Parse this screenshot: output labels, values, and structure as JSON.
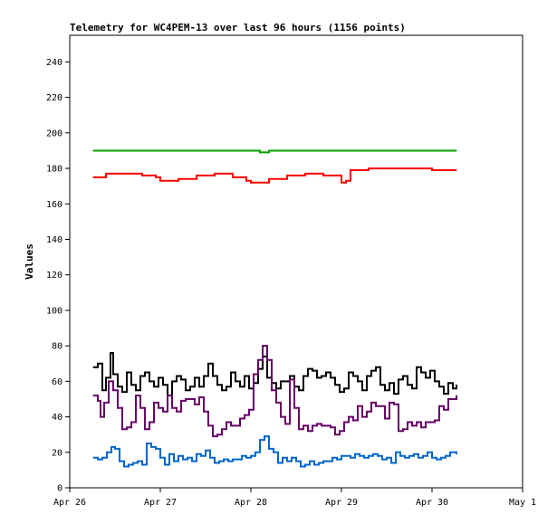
{
  "chart_data": {
    "type": "line",
    "title": "Telemetry for WC4PEM-13 over last 96 hours (1156 points)",
    "ylabel": "Values",
    "xlabel": "",
    "ylim": [
      0,
      255
    ],
    "yticks": [
      0,
      20,
      40,
      60,
      80,
      100,
      120,
      140,
      160,
      180,
      200,
      220,
      240
    ],
    "xlim": [
      "2024-04-26",
      "2024-05-01"
    ],
    "xticks": [
      {
        "label": "Apr 26",
        "day": 0
      },
      {
        "label": "Apr 27",
        "day": 1
      },
      {
        "label": "Apr 28",
        "day": 2
      },
      {
        "label": "Apr 29",
        "day": 3
      },
      {
        "label": "Apr 30",
        "day": 4
      },
      {
        "label": "May 1",
        "day": 5
      }
    ],
    "grid": false,
    "series": [
      {
        "color": "#00a000",
        "x": [
          0.26,
          0.5,
          1.0,
          1.5,
          2.0,
          2.1,
          2.2,
          2.5,
          3.0,
          3.5,
          4.0,
          4.27
        ],
        "values": [
          190,
          190,
          190,
          190,
          190,
          189,
          190,
          190,
          190,
          190,
          190,
          190
        ]
      },
      {
        "color": "#ff0000",
        "x": [
          0.26,
          0.4,
          0.6,
          0.8,
          0.95,
          1.0,
          1.2,
          1.4,
          1.6,
          1.8,
          1.95,
          2.0,
          2.2,
          2.4,
          2.6,
          2.8,
          3.0,
          3.05,
          3.1,
          3.3,
          3.5,
          3.7,
          3.9,
          4.0,
          4.1,
          4.27
        ],
        "values": [
          175,
          177,
          177,
          176,
          175,
          173,
          174,
          176,
          177,
          175,
          173,
          172,
          174,
          176,
          177,
          176,
          172,
          173,
          179,
          180,
          180,
          180,
          180,
          179,
          179,
          179
        ]
      },
      {
        "color": "#000000",
        "x": [
          0.26,
          0.31,
          0.36,
          0.4,
          0.45,
          0.48,
          0.53,
          0.58,
          0.63,
          0.68,
          0.73,
          0.78,
          0.83,
          0.88,
          0.93,
          0.98,
          1.03,
          1.08,
          1.13,
          1.18,
          1.23,
          1.28,
          1.33,
          1.38,
          1.43,
          1.48,
          1.53,
          1.58,
          1.63,
          1.68,
          1.73,
          1.78,
          1.83,
          1.88,
          1.93,
          1.98,
          2.03,
          2.08,
          2.13,
          2.18,
          2.23,
          2.28,
          2.33,
          2.38,
          2.43,
          2.48,
          2.53,
          2.58,
          2.63,
          2.68,
          2.73,
          2.78,
          2.83,
          2.88,
          2.93,
          2.98,
          3.03,
          3.08,
          3.13,
          3.18,
          3.23,
          3.28,
          3.33,
          3.38,
          3.43,
          3.48,
          3.53,
          3.58,
          3.63,
          3.68,
          3.73,
          3.78,
          3.83,
          3.88,
          3.93,
          3.98,
          4.03,
          4.08,
          4.13,
          4.18,
          4.23,
          4.27
        ],
        "values": [
          68,
          70,
          55,
          62,
          76,
          64,
          57,
          54,
          65,
          58,
          55,
          63,
          65,
          60,
          57,
          62,
          58,
          52,
          60,
          63,
          61,
          55,
          57,
          62,
          57,
          63,
          70,
          63,
          58,
          55,
          57,
          65,
          60,
          57,
          63,
          56,
          59,
          67,
          74,
          62,
          59,
          56,
          60,
          60,
          63,
          57,
          55,
          63,
          67,
          66,
          62,
          63,
          65,
          62,
          58,
          54,
          56,
          65,
          63,
          60,
          55,
          63,
          66,
          68,
          58,
          55,
          59,
          53,
          61,
          63,
          58,
          56,
          68,
          65,
          62,
          66,
          60,
          57,
          53,
          59,
          56,
          58
        ]
      },
      {
        "color": "#660066",
        "x": [
          0.26,
          0.31,
          0.34,
          0.38,
          0.43,
          0.48,
          0.53,
          0.58,
          0.63,
          0.68,
          0.73,
          0.78,
          0.83,
          0.88,
          0.93,
          0.98,
          1.03,
          1.08,
          1.13,
          1.18,
          1.23,
          1.28,
          1.33,
          1.38,
          1.43,
          1.48,
          1.53,
          1.58,
          1.63,
          1.68,
          1.73,
          1.78,
          1.83,
          1.88,
          1.93,
          1.98,
          2.03,
          2.08,
          2.13,
          2.18,
          2.23,
          2.28,
          2.33,
          2.38,
          2.43,
          2.48,
          2.53,
          2.58,
          2.63,
          2.68,
          2.73,
          2.78,
          2.83,
          2.88,
          2.93,
          2.98,
          3.03,
          3.08,
          3.13,
          3.18,
          3.23,
          3.28,
          3.33,
          3.38,
          3.43,
          3.48,
          3.53,
          3.58,
          3.63,
          3.68,
          3.73,
          3.78,
          3.83,
          3.88,
          3.93,
          3.98,
          4.03,
          4.08,
          4.13,
          4.18,
          4.23,
          4.27
        ],
        "values": [
          52,
          49,
          40,
          48,
          60,
          55,
          45,
          33,
          34,
          37,
          52,
          45,
          33,
          37,
          48,
          45,
          43,
          52,
          45,
          43,
          49,
          50,
          50,
          47,
          51,
          43,
          35,
          29,
          30,
          33,
          37,
          35,
          35,
          39,
          41,
          44,
          64,
          72,
          80,
          72,
          55,
          48,
          40,
          36,
          61,
          45,
          33,
          35,
          32,
          35,
          36,
          35,
          35,
          34,
          30,
          32,
          37,
          40,
          38,
          46,
          40,
          43,
          48,
          46,
          46,
          39,
          48,
          47,
          32,
          33,
          37,
          35,
          37,
          34,
          37,
          37,
          38,
          46,
          44,
          50,
          50,
          52
        ]
      },
      {
        "color": "#0066cc",
        "x": [
          0.26,
          0.31,
          0.36,
          0.41,
          0.46,
          0.5,
          0.55,
          0.6,
          0.65,
          0.7,
          0.75,
          0.8,
          0.85,
          0.9,
          0.95,
          1.0,
          1.05,
          1.1,
          1.15,
          1.2,
          1.25,
          1.3,
          1.35,
          1.4,
          1.45,
          1.5,
          1.55,
          1.6,
          1.65,
          1.7,
          1.75,
          1.8,
          1.85,
          1.9,
          1.95,
          2.0,
          2.05,
          2.1,
          2.15,
          2.2,
          2.25,
          2.3,
          2.35,
          2.4,
          2.45,
          2.5,
          2.55,
          2.6,
          2.65,
          2.7,
          2.75,
          2.8,
          2.85,
          2.9,
          2.95,
          3.0,
          3.05,
          3.1,
          3.15,
          3.2,
          3.25,
          3.3,
          3.35,
          3.4,
          3.45,
          3.5,
          3.55,
          3.6,
          3.65,
          3.7,
          3.75,
          3.8,
          3.85,
          3.9,
          3.95,
          4.0,
          4.05,
          4.1,
          4.15,
          4.2,
          4.27
        ],
        "values": [
          17,
          16,
          17,
          20,
          23,
          22,
          15,
          12,
          13,
          14,
          15,
          13,
          25,
          23,
          22,
          17,
          13,
          19,
          15,
          18,
          16,
          17,
          15,
          19,
          18,
          21,
          17,
          14,
          15,
          16,
          15,
          16,
          16,
          18,
          17,
          18,
          20,
          27,
          29,
          22,
          20,
          14,
          17,
          15,
          17,
          15,
          12,
          13,
          15,
          13,
          14,
          15,
          15,
          17,
          16,
          18,
          18,
          17,
          19,
          18,
          17,
          18,
          19,
          18,
          16,
          17,
          14,
          20,
          18,
          17,
          18,
          19,
          17,
          18,
          20,
          17,
          16,
          17,
          18,
          20,
          19
        ]
      }
    ]
  }
}
